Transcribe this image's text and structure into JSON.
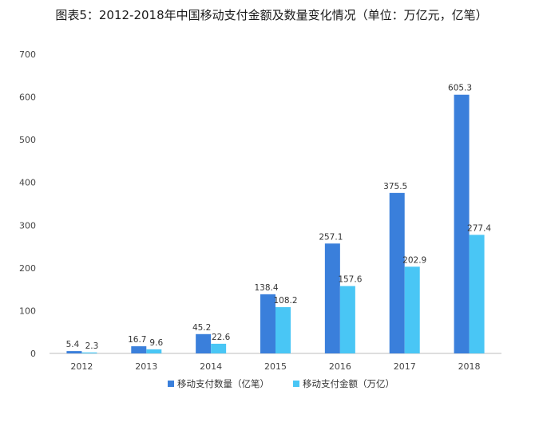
{
  "chart_data": {
    "type": "bar",
    "title": "图表5：2012-2018年中国移动支付金额及数量变化情况（单位：万亿元，亿笔）",
    "categories": [
      "2012",
      "2013",
      "2014",
      "2015",
      "2016",
      "2017",
      "2018"
    ],
    "series": [
      {
        "name": "移动支付数量（亿笔）",
        "values": [
          5.4,
          16.7,
          45.2,
          138.4,
          257.1,
          375.5,
          605.3
        ],
        "color": "#3a7fdb"
      },
      {
        "name": "移动支付金额（万亿）",
        "values": [
          2.3,
          9.6,
          22.6,
          108.2,
          157.6,
          202.9,
          277.4
        ],
        "color": "#49c6f5"
      }
    ],
    "yticks": [
      0,
      100,
      200,
      300,
      400,
      500,
      600,
      700
    ],
    "ylim": [
      0,
      700
    ],
    "grid": false,
    "legend": "bottom-center",
    "xlabel": "",
    "ylabel": ""
  }
}
